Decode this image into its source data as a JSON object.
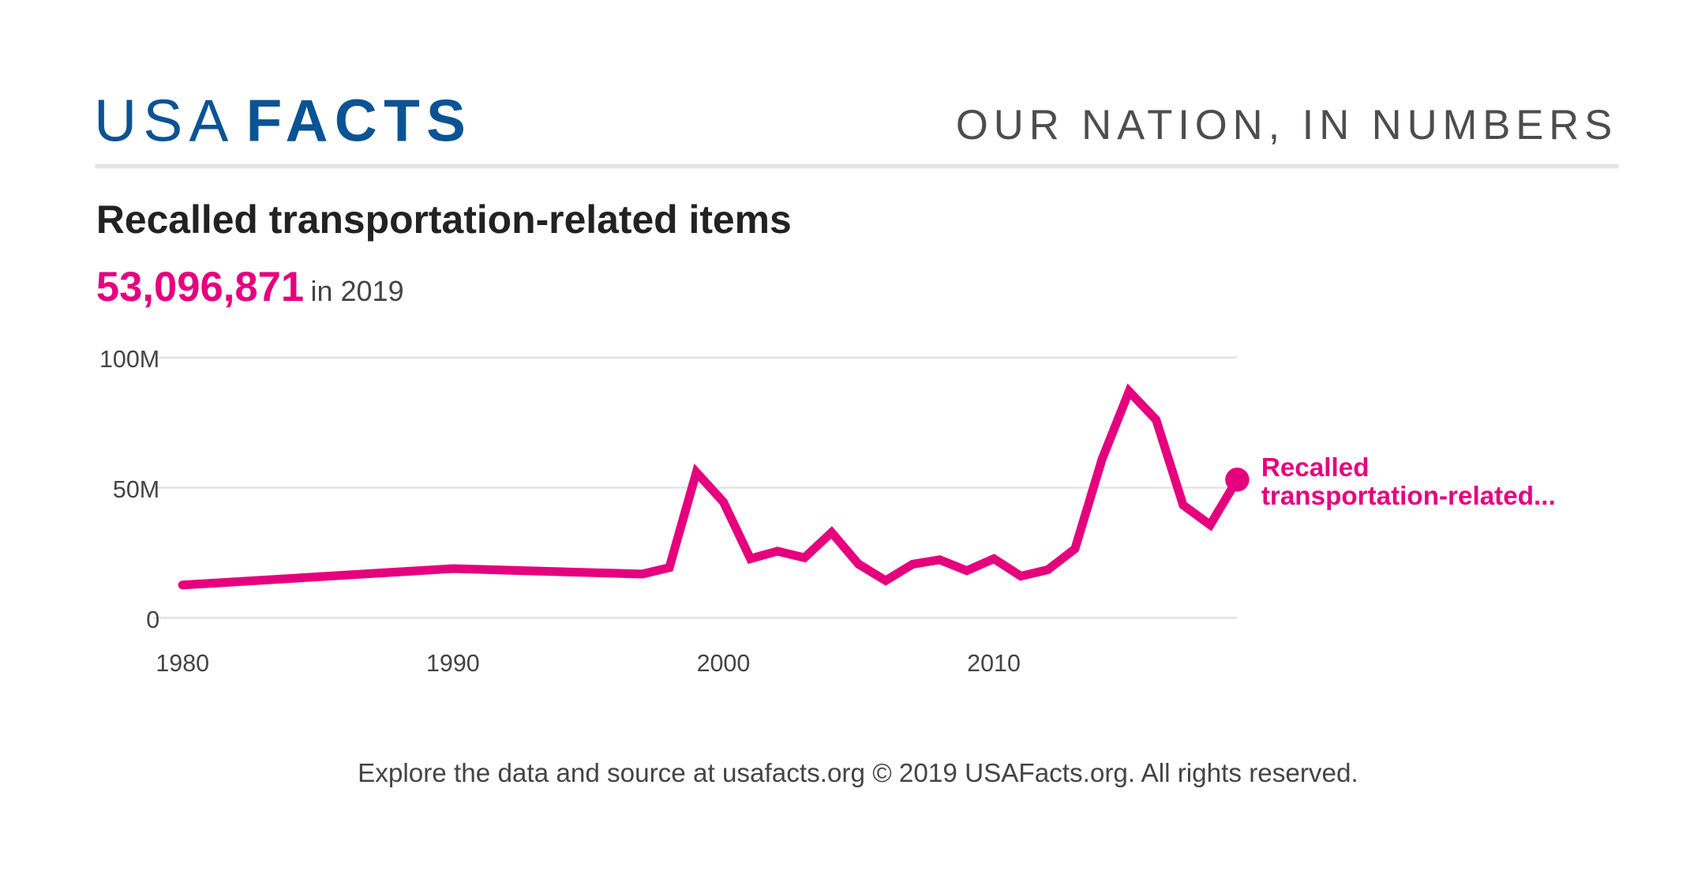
{
  "header": {
    "logo_text": "USAFACTS",
    "logo_part1": "USA",
    "logo_part2": "FACTS",
    "tagline": "OUR NATION, IN NUMBERS"
  },
  "title": "Recalled transportation-related items",
  "headline": {
    "value": "53,096,871",
    "suffix": "in 2019"
  },
  "footer": "Explore the data and source at usafacts.org © 2019 USAFacts.org. All rights reserved.",
  "colors": {
    "series": "#e5007e",
    "brand": "#0b5394",
    "grid": "#e6e6e6"
  },
  "chart_data": {
    "type": "line",
    "title": "Recalled transportation-related items",
    "xlim": [
      1980,
      2019
    ],
    "ylim": [
      0,
      100000000
    ],
    "x_ticks": [
      1980,
      1990,
      2000,
      2010
    ],
    "x_tick_labels": [
      "1980",
      "1990",
      "2000",
      "2010"
    ],
    "y_ticks": [
      0,
      50000000,
      100000000
    ],
    "y_tick_labels": [
      "0",
      "50M",
      "100M"
    ],
    "grid": "horizontal",
    "series": [
      {
        "name": "Recalled transportation-related...",
        "x": [
          1980,
          1990,
          1997,
          1998,
          1999,
          2000,
          2001,
          2002,
          2003,
          2004,
          2005,
          2006,
          2007,
          2008,
          2009,
          2010,
          2011,
          2012,
          2013,
          2014,
          2015,
          2016,
          2017,
          2018,
          2019
        ],
        "values": [
          12600000,
          18900000,
          16800000,
          19300000,
          55900000,
          44500000,
          22700000,
          25600000,
          23100000,
          32800000,
          20600000,
          14300000,
          20600000,
          22300000,
          18100000,
          22700000,
          16000000,
          18500000,
          26500000,
          60900000,
          87000000,
          76100000,
          43300000,
          35700000,
          53096871
        ]
      }
    ],
    "end_label_lines": [
      "Recalled",
      "transportation-related..."
    ]
  }
}
